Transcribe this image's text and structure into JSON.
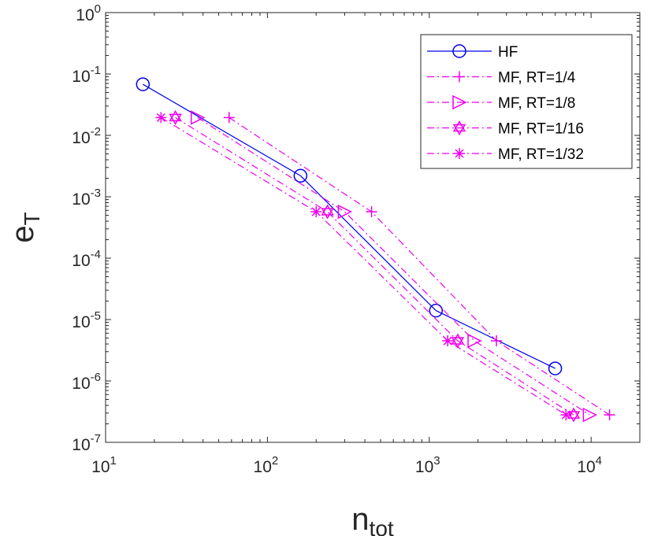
{
  "chart_data": {
    "type": "line",
    "x_scale": "log",
    "y_scale": "log",
    "xlim": [
      10,
      20000
    ],
    "ylim": [
      1e-07,
      1
    ],
    "x_ticks": [
      {
        "base": "10",
        "exp": "1",
        "value": 10
      },
      {
        "base": "10",
        "exp": "2",
        "value": 100
      },
      {
        "base": "10",
        "exp": "3",
        "value": 1000
      },
      {
        "base": "10",
        "exp": "4",
        "value": 10000
      }
    ],
    "y_ticks": [
      {
        "base": "10",
        "exp": "0",
        "value": 1
      },
      {
        "base": "10",
        "exp": "-1",
        "value": 0.1
      },
      {
        "base": "10",
        "exp": "-2",
        "value": 0.01
      },
      {
        "base": "10",
        "exp": "-3",
        "value": 0.001
      },
      {
        "base": "10",
        "exp": "-4",
        "value": 0.0001
      },
      {
        "base": "10",
        "exp": "-5",
        "value": 1e-05
      },
      {
        "base": "10",
        "exp": "-6",
        "value": 1e-06
      },
      {
        "base": "10",
        "exp": "-7",
        "value": 1e-07
      }
    ],
    "xlabel": {
      "main": "n",
      "sub": "tot"
    },
    "ylabel": {
      "main": "e",
      "sub": "T"
    },
    "grid": false,
    "legend_position": "top-right",
    "series": [
      {
        "name": "HF",
        "color": "#0000ee",
        "marker": "circle",
        "line": "solid",
        "x": [
          17,
          160,
          1100,
          6000
        ],
        "y": [
          0.068,
          0.0022,
          1.4e-05,
          1.6e-06
        ]
      },
      {
        "name": "MF, RT=1/4",
        "color": "#ee00ee",
        "marker": "plus",
        "line": "dashdot",
        "x": [
          58,
          440,
          2600,
          13000
        ],
        "y": [
          0.0195,
          0.00057,
          4.5e-06,
          2.8e-07
        ]
      },
      {
        "name": "MF, RT=1/8",
        "color": "#ee00ee",
        "marker": "triangle-right",
        "line": "dashdot",
        "x": [
          37,
          300,
          1900,
          9800
        ],
        "y": [
          0.0195,
          0.00057,
          4.5e-06,
          2.8e-07
        ]
      },
      {
        "name": "MF, RT=1/16",
        "color": "#ee00ee",
        "marker": "hexagram",
        "line": "dashdot",
        "x": [
          27,
          235,
          1500,
          7800
        ],
        "y": [
          0.0195,
          0.00057,
          4.5e-06,
          2.8e-07
        ]
      },
      {
        "name": "MF, RT=1/32",
        "color": "#ee00ee",
        "marker": "asterisk",
        "line": "dashdot",
        "x": [
          22,
          200,
          1300,
          7000
        ],
        "y": [
          0.0195,
          0.00057,
          4.5e-06,
          2.8e-07
        ]
      }
    ]
  }
}
